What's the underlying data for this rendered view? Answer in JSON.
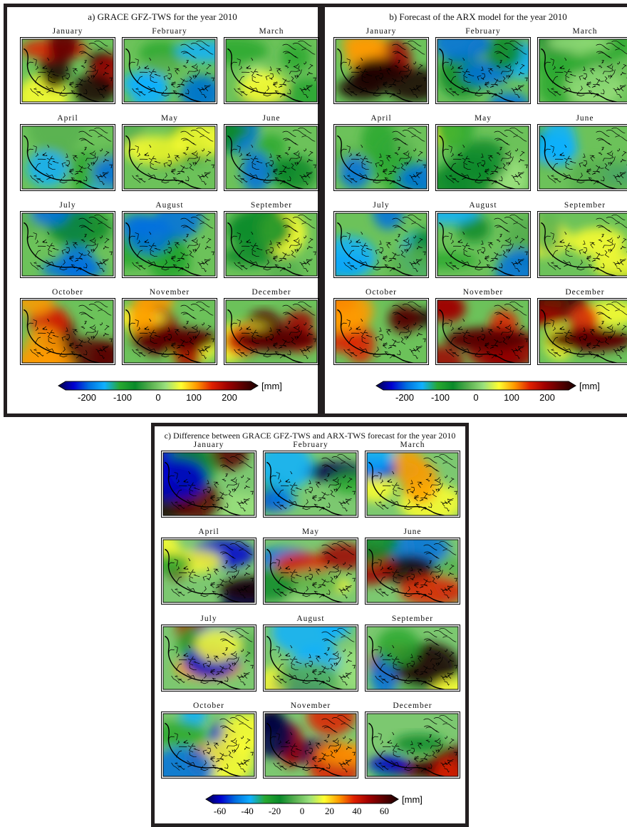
{
  "months": [
    "January",
    "February",
    "March",
    "April",
    "May",
    "June",
    "July",
    "August",
    "September",
    "October",
    "November",
    "December"
  ],
  "panels": [
    {
      "id": "a",
      "title": "a) GRACE GFZ-TWS for the year 2010",
      "unit": "[mm]",
      "ticks": [
        "-200",
        "-100",
        "0",
        "100",
        "200"
      ],
      "tick_values": [
        -200,
        -100,
        0,
        100,
        200
      ],
      "range": [
        -260,
        260
      ],
      "tick_font": "sans",
      "colormap": [
        "#00004a",
        "#0000d0",
        "#0070e0",
        "#10b0ff",
        "#28a830",
        "#0a8a2a",
        "#58b050",
        "#9ae07c",
        "#ffff30",
        "#ff9a00",
        "#e02000",
        "#a00000",
        "#5a0000",
        "#1a0000"
      ]
    },
    {
      "id": "b",
      "title": "b) Forecast of the ARX model for the year 2010",
      "unit": "[mm]",
      "ticks": [
        "-200",
        "-100",
        "0",
        "100",
        "200"
      ],
      "tick_values": [
        -200,
        -100,
        0,
        100,
        200
      ],
      "range": [
        -260,
        260
      ],
      "tick_font": "sans",
      "colormap": [
        "#00004a",
        "#0000d0",
        "#0070e0",
        "#10b0ff",
        "#28a830",
        "#0a8a2a",
        "#58b050",
        "#9ae07c",
        "#ffff30",
        "#ff9a00",
        "#e02000",
        "#a00000",
        "#5a0000",
        "#1a0000"
      ]
    },
    {
      "id": "c",
      "title": "c) Difference between GRACE GFZ-TWS and ARX-TWS forecast for the year 2010",
      "unit": "[mm]",
      "ticks": [
        "-60",
        "-40",
        "-20",
        "0",
        "20",
        "40",
        "60"
      ],
      "tick_values": [
        -60,
        -40,
        -20,
        0,
        20,
        40,
        60
      ],
      "range": [
        -65,
        65
      ],
      "tick_font": "serif",
      "colormap": [
        "#00004a",
        "#0000d0",
        "#0070e0",
        "#10b0ff",
        "#28a830",
        "#0a8a2a",
        "#58b050",
        "#9ae07c",
        "#ffff30",
        "#ff9a00",
        "#e02000",
        "#a00000",
        "#5a0000",
        "#1a0000"
      ]
    }
  ]
}
